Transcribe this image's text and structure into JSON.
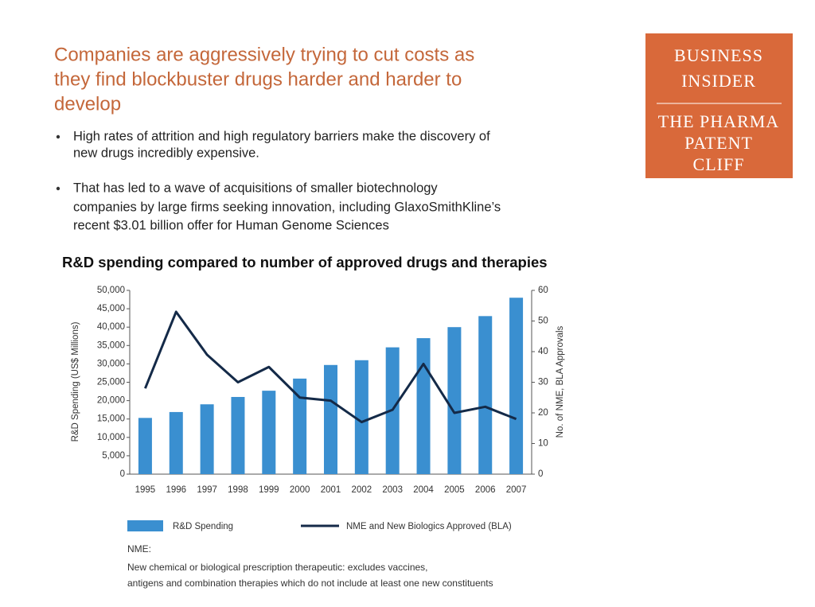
{
  "slide": {
    "title": [
      "Companies are aggressively trying to cut costs as",
      "they find blockbuster drugs harder and harder to",
      "develop"
    ],
    "bullets": [
      [
        "High rates of attrition and high regulatory barriers make the discovery of",
        "new drugs incredibly expensive."
      ],
      [
        "That has led to a wave of acquisitions of smaller biotechnology",
        "companies by large firms seeking innovation, including GlaxoSmithKline’s",
        "recent $3.01 billion offer for Human Genome Sciences"
      ]
    ],
    "logo": {
      "brand": [
        "BUSINESS",
        "INSIDER"
      ],
      "series": [
        "THE PHARMA",
        "PATENT",
        "CLIFF"
      ]
    },
    "footnote": [
      "NME:",
      "New chemical or biological prescription therapeutic: excludes vaccines,",
      "antigens and combination therapies which do not include at least one new constituents"
    ]
  },
  "chart_data": {
    "type": "bar",
    "title": "R&D spending compared to number of approved drugs and therapies",
    "y_label": "R&D Spending (US$ Millions)",
    "y2_label": "No. of NME, BLA Approvals",
    "categories": [
      "1995",
      "1996",
      "1997",
      "1998",
      "1999",
      "2000",
      "2001",
      "2002",
      "2003",
      "2004",
      "2005",
      "2006",
      "2007"
    ],
    "series": [
      {
        "name": "R&D Spending",
        "type": "bar",
        "color": "#3a8fd0",
        "values": [
          15300,
          16900,
          19000,
          21000,
          22700,
          26000,
          29700,
          31000,
          34500,
          37000,
          40000,
          43000,
          48000
        ]
      },
      {
        "name": "NME and New Biologics Approved (BLA)",
        "type": "line",
        "axis": "y2",
        "color": "#142a48",
        "values": [
          28,
          53,
          39,
          30,
          35,
          25,
          24,
          17,
          21,
          36,
          20,
          22,
          18
        ]
      }
    ],
    "ylim": [
      0,
      50000
    ],
    "yticks": [
      0,
      {
        "value": 5000,
        "label": "5,000"
      },
      {
        "value": 10000,
        "label": "10,000"
      },
      {
        "value": 15000,
        "label": "15,000"
      },
      {
        "value": 20000,
        "label": "20,000"
      },
      {
        "value": 25000,
        "label": "25,000"
      },
      {
        "value": 30000,
        "label": "30,000"
      },
      {
        "value": 35000,
        "label": "35,000"
      },
      {
        "value": 40000,
        "label": "40,000"
      },
      {
        "value": 45000,
        "label": "45,000"
      },
      {
        "value": 50000,
        "label": "50,000"
      }
    ],
    "y2lim": [
      0,
      60
    ],
    "y2ticks": [
      0,
      10,
      20,
      30,
      40,
      50,
      60
    ],
    "grid": false,
    "legend": "bottom"
  }
}
